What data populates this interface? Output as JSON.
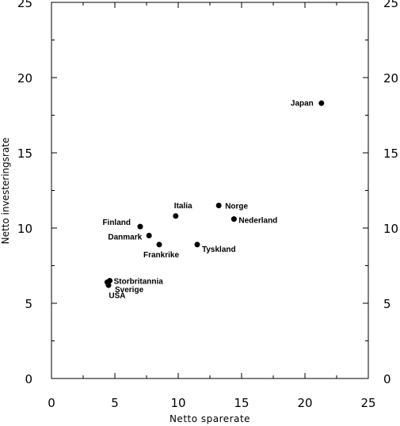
{
  "chart_data": {
    "type": "scatter",
    "title": "",
    "xlabel": "Netto sparerate",
    "ylabel": "Netto investeringsrate",
    "xlim": [
      0,
      25
    ],
    "ylim": [
      0,
      25
    ],
    "x_ticks": [
      "0",
      "5",
      "10",
      "15",
      "20",
      "25"
    ],
    "y_ticks": [
      "0",
      "5",
      "10",
      "15",
      "20",
      "25"
    ],
    "grid": false,
    "marker_color": "#000000",
    "points": [
      {
        "label": "Japan",
        "x": 21.3,
        "y": 18.3
      },
      {
        "label": "Norge",
        "x": 13.2,
        "y": 11.5
      },
      {
        "label": "Nederland",
        "x": 14.4,
        "y": 10.6
      },
      {
        "label": "Italia",
        "x": 9.8,
        "y": 10.8
      },
      {
        "label": "Finland",
        "x": 7.0,
        "y": 10.1
      },
      {
        "label": "Danmark",
        "x": 7.7,
        "y": 9.5
      },
      {
        "label": "Frankrike",
        "x": 8.5,
        "y": 8.9
      },
      {
        "label": "Tyskland",
        "x": 11.5,
        "y": 8.9
      },
      {
        "label": "Storbritannia",
        "x": 4.6,
        "y": 6.5
      },
      {
        "label": "Sverige",
        "x": 4.5,
        "y": 6.2
      },
      {
        "label": "USA",
        "x": 4.4,
        "y": 6.4
      }
    ]
  }
}
